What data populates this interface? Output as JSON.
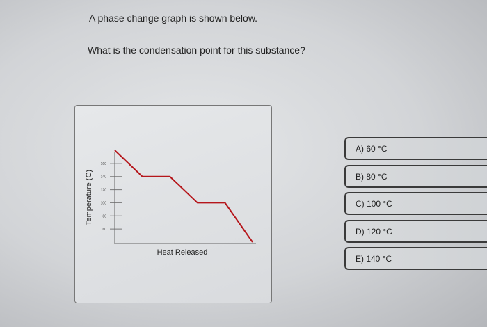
{
  "question": {
    "intro": "A phase change graph is shown below.",
    "prompt": "What is the condensation point for this substance?"
  },
  "options": [
    {
      "label": "A) 60 °C"
    },
    {
      "label": "B) 80 °C"
    },
    {
      "label": "C) 100 °C"
    },
    {
      "label": "D) 120 °C"
    },
    {
      "label": "E) 140 °C"
    }
  ],
  "chart_data": {
    "type": "line",
    "xlabel": "Heat Released",
    "ylabel": "Temperature (C)",
    "yticks": [
      60,
      80,
      100,
      120,
      140,
      160
    ],
    "ylim": [
      40,
      180
    ],
    "x": [
      0,
      1,
      2,
      3,
      4,
      5
    ],
    "y": [
      180,
      140,
      140,
      100,
      100,
      40
    ],
    "line_color": "#b5161b",
    "grid": false
  }
}
